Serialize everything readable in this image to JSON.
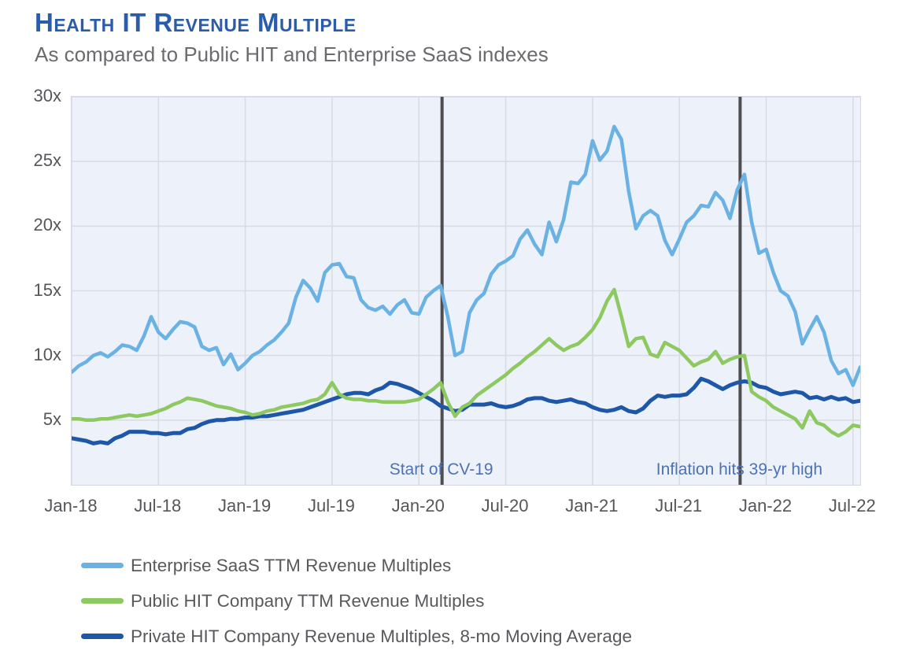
{
  "header": {
    "title": "Health IT Revenue Multiple",
    "subtitle": "As compared to Public HIT and Enterprise SaaS indexes"
  },
  "chart_data": {
    "type": "line",
    "title": "Health IT Revenue Multiple",
    "subtitle": "As compared to Public HIT and Enterprise SaaS indexes",
    "x_ticks": [
      "Jan-18",
      "Jul-18",
      "Jan-19",
      "Jul-19",
      "Jan-20",
      "Jul-20",
      "Jan-21",
      "Jul-21",
      "Jan-22",
      "Jul-22"
    ],
    "y_ticks": [
      "30x",
      "25x",
      "20x",
      "15x",
      "10x",
      "5x"
    ],
    "y_tick_values": [
      30,
      25,
      20,
      15,
      10,
      5
    ],
    "ylim": [
      0,
      30
    ],
    "x_months_total": 54.5,
    "sample_step_months": 0.5,
    "grid": true,
    "legend_position": "bottom-left",
    "colors": {
      "plot_bg": "#edf1f9",
      "gridline": "#d9dbe2",
      "annotation_line": "#4e4e50",
      "annotation_text": "#4d72b5",
      "title": "#2a5caa",
      "axis_text": "#55565a"
    },
    "series": [
      {
        "name": "Enterprise SaaS TTM Revenue Multiples",
        "color": "#6ab2e3",
        "width": 4.5,
        "values": [
          8.7,
          9.2,
          9.5,
          10.0,
          10.2,
          9.9,
          10.3,
          10.8,
          10.7,
          10.4,
          11.5,
          13.0,
          11.8,
          11.3,
          12.0,
          12.6,
          12.5,
          12.2,
          10.7,
          10.4,
          10.6,
          9.3,
          10.1,
          8.9,
          9.4,
          10.0,
          10.3,
          10.8,
          11.2,
          11.8,
          12.5,
          14.5,
          15.8,
          15.2,
          14.2,
          16.4,
          17.0,
          17.1,
          16.1,
          16.0,
          14.3,
          13.7,
          13.5,
          13.8,
          13.2,
          13.9,
          14.3,
          13.3,
          13.2,
          14.5,
          15.0,
          15.4,
          13.0,
          10.0,
          10.3,
          13.3,
          14.3,
          14.8,
          16.3,
          17.0,
          17.3,
          17.7,
          19.0,
          19.7,
          18.6,
          17.8,
          20.3,
          18.8,
          20.5,
          23.4,
          23.3,
          24.0,
          26.6,
          25.1,
          25.8,
          27.7,
          26.7,
          22.7,
          19.8,
          20.8,
          21.2,
          20.8,
          18.9,
          17.8,
          19.0,
          20.3,
          20.8,
          21.6,
          21.5,
          22.6,
          22.0,
          20.6,
          22.8,
          24.0,
          20.3,
          17.9,
          18.2,
          16.4,
          15.0,
          14.6,
          13.4,
          10.9,
          12.0,
          13.0,
          11.8,
          9.6,
          8.6,
          8.9,
          7.7,
          9.1
        ]
      },
      {
        "name": "Public HIT Company TTM Revenue Multiples",
        "color": "#8dc860",
        "width": 4.5,
        "values": [
          5.1,
          5.1,
          5.0,
          5.0,
          5.1,
          5.1,
          5.2,
          5.3,
          5.4,
          5.3,
          5.4,
          5.5,
          5.7,
          5.9,
          6.2,
          6.4,
          6.7,
          6.6,
          6.5,
          6.3,
          6.1,
          6.0,
          5.9,
          5.7,
          5.6,
          5.4,
          5.5,
          5.7,
          5.8,
          6.0,
          6.1,
          6.2,
          6.3,
          6.5,
          6.6,
          7.0,
          7.9,
          7.0,
          6.7,
          6.6,
          6.6,
          6.5,
          6.5,
          6.4,
          6.4,
          6.4,
          6.4,
          6.5,
          6.6,
          7.0,
          7.4,
          7.9,
          6.4,
          5.3,
          6.0,
          6.3,
          6.9,
          7.3,
          7.7,
          8.1,
          8.5,
          9.0,
          9.4,
          9.9,
          10.3,
          10.8,
          11.3,
          10.8,
          10.4,
          10.7,
          10.9,
          11.4,
          12.0,
          12.9,
          14.2,
          15.1,
          13.0,
          10.7,
          11.3,
          11.4,
          10.1,
          9.9,
          11.0,
          10.7,
          10.4,
          9.8,
          9.2,
          9.5,
          9.7,
          10.3,
          9.4,
          9.7,
          9.9,
          10.0,
          7.2,
          6.8,
          6.5,
          6.0,
          5.7,
          5.4,
          5.1,
          4.4,
          5.7,
          4.8,
          4.6,
          4.1,
          3.8,
          4.1,
          4.6,
          4.5
        ]
      },
      {
        "name": "Private HIT Company Revenue Multiples, 8-mo Moving Average",
        "color": "#1f57a8",
        "width": 5,
        "values": [
          3.6,
          3.5,
          3.4,
          3.2,
          3.3,
          3.2,
          3.6,
          3.8,
          4.1,
          4.1,
          4.1,
          4.0,
          4.0,
          3.9,
          4.0,
          4.0,
          4.3,
          4.4,
          4.7,
          4.9,
          5.0,
          5.0,
          5.1,
          5.1,
          5.2,
          5.2,
          5.3,
          5.3,
          5.4,
          5.5,
          5.6,
          5.7,
          5.8,
          6.0,
          6.2,
          6.4,
          6.6,
          6.8,
          7.0,
          7.1,
          7.1,
          7.0,
          7.3,
          7.5,
          7.9,
          7.8,
          7.6,
          7.4,
          7.1,
          6.8,
          6.5,
          6.1,
          5.9,
          5.7,
          5.8,
          6.2,
          6.2,
          6.2,
          6.3,
          6.1,
          6.0,
          6.1,
          6.3,
          6.6,
          6.7,
          6.7,
          6.5,
          6.4,
          6.5,
          6.6,
          6.4,
          6.3,
          6.0,
          5.8,
          5.7,
          5.8,
          6.0,
          5.7,
          5.6,
          5.9,
          6.5,
          6.9,
          6.8,
          6.9,
          6.9,
          7.0,
          7.5,
          8.2,
          8.0,
          7.7,
          7.4,
          7.7,
          7.9,
          8.0,
          7.9,
          7.6,
          7.5,
          7.2,
          7.0,
          7.1,
          7.2,
          7.1,
          6.7,
          6.8,
          6.6,
          6.8,
          6.6,
          6.7,
          6.4,
          6.5
        ]
      }
    ],
    "annotations": [
      {
        "label": "Start of CV-19",
        "month": 25.6
      },
      {
        "label": "Inflation hits 39-yr high",
        "month": 46.2
      }
    ]
  }
}
